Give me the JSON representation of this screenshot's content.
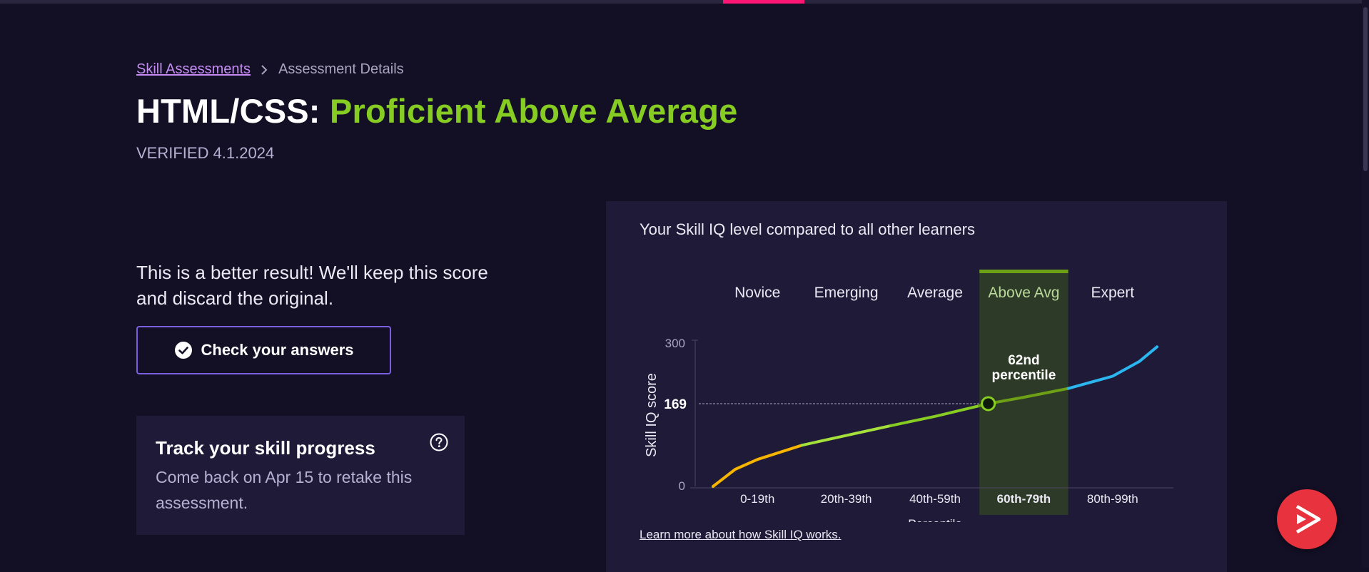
{
  "breadcrumb": {
    "parent": "Skill Assessments",
    "current": "Assessment Details"
  },
  "header": {
    "skill": "HTML/CSS:",
    "level": "Proficient Above Average",
    "verified": "VERIFIED 4.1.2024"
  },
  "result": {
    "message": "This is a better result! We'll keep this score and discard the original.",
    "check_label": "Check your answers"
  },
  "track": {
    "title": "Track your skill progress",
    "description": "Come back on Apr 15 to retake this assessment."
  },
  "panel": {
    "title": "Your Skill IQ level compared to all other learners",
    "learn_more": "Learn more about how Skill IQ works."
  },
  "chart_data": {
    "type": "line",
    "xlabel": "Percentile",
    "ylabel": "Skill IQ score",
    "ylim": [
      0,
      300
    ],
    "y_ticks": [
      "300",
      "0"
    ],
    "bands": [
      {
        "level": "Novice",
        "range": "0-19th",
        "from": 0,
        "to": 20,
        "color": "#f7b500"
      },
      {
        "level": "Emerging",
        "range": "20th-39th",
        "from": 20,
        "to": 40,
        "color": "#a5e03b"
      },
      {
        "level": "Average",
        "range": "40th-59th",
        "from": 40,
        "to": 60,
        "color": "#86cc22"
      },
      {
        "level": "Above Avg",
        "range": "60th-79th",
        "from": 60,
        "to": 80,
        "color": "#6ea016"
      },
      {
        "level": "Expert",
        "range": "80th-99th",
        "from": 80,
        "to": 100,
        "color": "#2bb6f0"
      }
    ],
    "highlight_band": "Above Avg",
    "curve": [
      {
        "x": 0,
        "y": 0
      },
      {
        "x": 5,
        "y": 35
      },
      {
        "x": 10,
        "y": 55
      },
      {
        "x": 20,
        "y": 84
      },
      {
        "x": 30,
        "y": 104
      },
      {
        "x": 40,
        "y": 124
      },
      {
        "x": 50,
        "y": 143
      },
      {
        "x": 62,
        "y": 169
      },
      {
        "x": 70,
        "y": 182
      },
      {
        "x": 80,
        "y": 200
      },
      {
        "x": 90,
        "y": 225
      },
      {
        "x": 96,
        "y": 255
      },
      {
        "x": 100,
        "y": 285
      }
    ],
    "marker": {
      "x": 62,
      "y": 169,
      "score_label": "169",
      "label_line1": "62nd",
      "label_line2": "percentile"
    }
  },
  "icons": {
    "check": "check-circle-icon",
    "help": "help-circle-icon",
    "fab": "pluralsight-play-icon"
  }
}
